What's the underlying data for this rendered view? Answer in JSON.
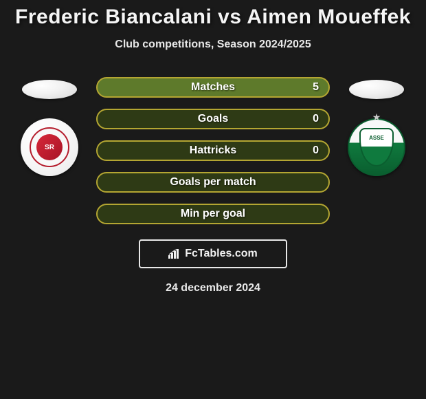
{
  "title": "Frederic Biancalani vs Aimen Moueffek",
  "subtitle": "Club competitions, Season 2024/2025",
  "date": "24 december 2024",
  "branding": {
    "label": "FcTables.com",
    "icon_name": "bar-chart-icon"
  },
  "colors": {
    "background": "#1a1a1a",
    "text": "#f5f5f5",
    "pill_border": "#b4a632",
    "pill_fill_green": "#5e7a2b",
    "pill_fill_dark": "#2e3a15"
  },
  "players": {
    "left": {
      "name": "Frederic Biancalani",
      "club": "Stade de Reims",
      "crest_initials": "SR",
      "crest_colors": {
        "outer": "#ffffff",
        "ring": "#b51c2c",
        "core": "#d62839"
      }
    },
    "right": {
      "name": "Aimen Moueffek",
      "club": "AS Saint-Étienne",
      "crest_initials": "ASSE",
      "crest_colors": {
        "top": "#ffffff",
        "bottom": "#0f7a3e",
        "border": "#0a5e2f"
      }
    }
  },
  "stats": [
    {
      "label": "Matches",
      "value_right": "5",
      "fill": "#5e7a2b"
    },
    {
      "label": "Goals",
      "value_right": "0",
      "fill": "#2e3a15"
    },
    {
      "label": "Hattricks",
      "value_right": "0",
      "fill": "#2e3a15"
    },
    {
      "label": "Goals per match",
      "value_right": "",
      "fill": "#2e3a15"
    },
    {
      "label": "Min per goal",
      "value_right": "",
      "fill": "#2e3a15"
    }
  ]
}
